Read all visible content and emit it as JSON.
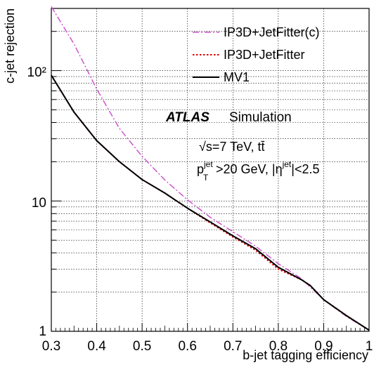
{
  "chart_data": {
    "type": "line",
    "xlabel": "b-jet tagging efficiency",
    "ylabel": "c-jet rejection",
    "xlim": [
      0.3,
      1.0
    ],
    "ylim": [
      1,
      300
    ],
    "yscale": "log",
    "grid": true,
    "legend_position": "top-right",
    "x_ticks": [
      "0.3",
      "0.4",
      "0.5",
      "0.6",
      "0.7",
      "0.8",
      "0.9",
      "1"
    ],
    "y_ticks": [
      "1",
      "10",
      "10²"
    ],
    "series": [
      {
        "name": "IP3D+JetFitter(c)",
        "style": "dash-dot",
        "color": "#cc55cc",
        "x": [
          0.3,
          0.35,
          0.4,
          0.45,
          0.5,
          0.55,
          0.6,
          0.65,
          0.7,
          0.75,
          0.8,
          0.85,
          0.9,
          0.95,
          1.0
        ],
        "y": [
          310,
          160,
          72,
          36,
          22,
          14.5,
          10.2,
          7.5,
          5.8,
          4.5,
          3.3,
          2.55,
          1.75,
          1.3,
          1.02
        ]
      },
      {
        "name": "IP3D+JetFitter",
        "style": "dotted",
        "color": "#dd0000",
        "x": [
          0.3,
          0.35,
          0.4,
          0.45,
          0.5,
          0.55,
          0.6,
          0.65,
          0.7,
          0.75,
          0.8,
          0.85,
          0.87,
          0.9,
          0.95,
          1.0
        ],
        "y": [
          92,
          48,
          29,
          20,
          14.6,
          11.5,
          8.8,
          6.8,
          5.3,
          4.2,
          3.0,
          2.5,
          2.25,
          1.75,
          1.32,
          1.02
        ]
      },
      {
        "name": "MV1",
        "style": "solid",
        "color": "#000000",
        "x": [
          0.3,
          0.35,
          0.4,
          0.45,
          0.5,
          0.55,
          0.6,
          0.65,
          0.7,
          0.75,
          0.8,
          0.85,
          0.87,
          0.9,
          0.95,
          1.0
        ],
        "y": [
          92,
          48,
          29,
          20,
          14.6,
          11.5,
          8.8,
          6.9,
          5.4,
          4.3,
          3.1,
          2.5,
          2.25,
          1.75,
          1.32,
          1.02
        ]
      }
    ],
    "annotations": {
      "atlas": "ATLAS",
      "simulation": "Simulation",
      "energy": "√s=7 TeV, tt̄",
      "cut_pt_p": "p",
      "cut_pt_sup": "jet",
      "cut_pt_sub": "T",
      "cut_pt_rest": ">20 GeV, |η",
      "cut_eta_sup": "jet",
      "cut_eta_rest": "|<2.5"
    }
  }
}
